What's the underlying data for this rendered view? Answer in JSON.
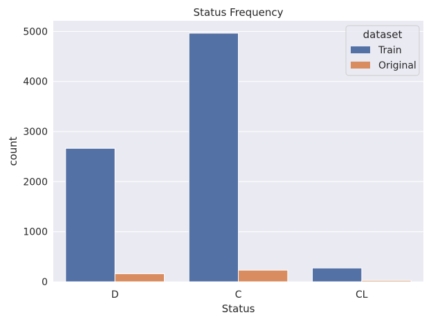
{
  "chart_data": {
    "type": "bar",
    "title": "Status Frequency",
    "xlabel": "Status",
    "ylabel": "count",
    "categories": [
      "D",
      "C",
      "CL"
    ],
    "series": [
      {
        "name": "Train",
        "values": [
          2665,
          4965,
          275
        ],
        "color": "#5471a5"
      },
      {
        "name": "Original",
        "values": [
          161,
          232,
          25
        ],
        "color": "#d88c60"
      }
    ],
    "ylim": [
      0,
      5213
    ],
    "yticks": [
      0,
      1000,
      2000,
      3000,
      4000,
      5000
    ],
    "grid": true,
    "legend": {
      "title": "dataset",
      "position": "top-right"
    },
    "plot_background": "#eaeaf2",
    "grid_color": "#ffffff"
  }
}
